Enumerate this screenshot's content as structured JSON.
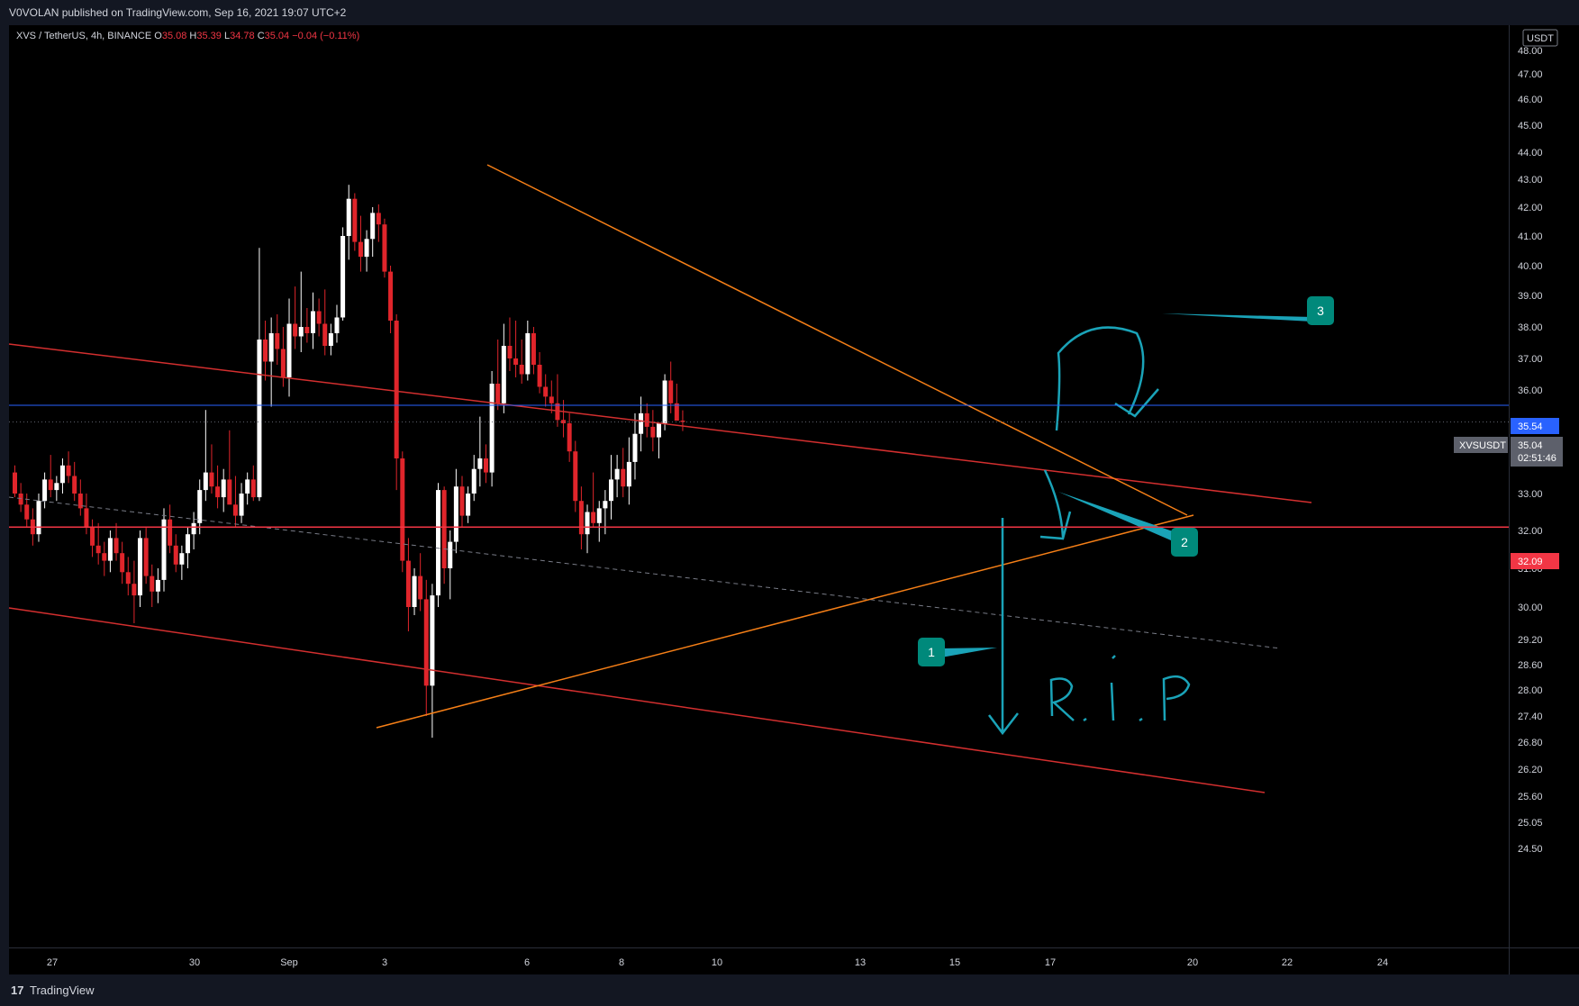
{
  "header": {
    "publish_text": "V0VOLAN published on TradingView.com, Sep 16, 2021 19:07 UTC+2"
  },
  "legend": {
    "pair": "XVS / TetherUS, 4h, BINANCE",
    "o_label": "O",
    "o_value": "35.08",
    "h_label": "H",
    "h_value": "35.39",
    "l_label": "L",
    "l_value": "34.78",
    "c_label": "C",
    "c_value": "35.04",
    "change": "−0.04 (−0.11%)"
  },
  "footer": {
    "brand": "TradingView",
    "logo": "17"
  },
  "price_axis": {
    "currency": "USDT",
    "symbol_label": "XVSUSDT",
    "last_price": "35.04",
    "countdown": "02:51:46",
    "blue_level_label": "35.54",
    "red_level_label": "32.09"
  },
  "colors": {
    "up": "#ffffff",
    "down": "#e0252b",
    "orange": "#f57f17",
    "red_line": "#d32f2f",
    "blue_line": "#2962ff",
    "annotation": "#1aa3b8",
    "badge": "#00897b"
  },
  "annotations": {
    "badge_1": "1",
    "badge_2": "2",
    "badge_3": "3",
    "rip_text": "R.I.P"
  },
  "chart_data": {
    "type": "candlestick",
    "title": "XVS / TetherUS, 4h, BINANCE",
    "y_ticks": [
      "48.00",
      "47.00",
      "46.00",
      "45.00",
      "44.00",
      "43.00",
      "42.00",
      "41.00",
      "40.00",
      "39.00",
      "38.00",
      "37.00",
      "36.00",
      "35.00",
      "34.00",
      "33.00",
      "32.00",
      "31.00",
      "30.00",
      "29.20",
      "28.60",
      "28.00",
      "27.40",
      "26.80",
      "26.20",
      "25.60",
      "25.05",
      "24.50"
    ],
    "x_ticks": [
      "27",
      "30",
      "Sep",
      "3",
      "6",
      "8",
      "10",
      "13",
      "15",
      "17",
      "20",
      "22",
      "24"
    ],
    "y_range": [
      24.1,
      48.2
    ],
    "y_scale": "log",
    "x_range": [
      "2021-08-26T20:00",
      "2021-09-25T20:00"
    ],
    "horizontal_levels": [
      {
        "price": 35.54,
        "color": "blue"
      },
      {
        "price": 32.09,
        "color": "red"
      },
      {
        "price": 35.04,
        "style": "dotted-last-price"
      }
    ],
    "candles": [
      [
        33.6,
        33.8,
        32.9,
        33.0
      ],
      [
        33.0,
        33.3,
        32.5,
        32.7
      ],
      [
        32.7,
        33.0,
        32.1,
        32.3
      ],
      [
        32.3,
        32.6,
        31.6,
        31.9
      ],
      [
        31.9,
        33.0,
        31.7,
        32.8
      ],
      [
        32.8,
        33.6,
        32.6,
        33.4
      ],
      [
        33.4,
        34.1,
        32.9,
        33.1
      ],
      [
        33.1,
        33.5,
        32.8,
        33.3
      ],
      [
        33.3,
        34.0,
        33.0,
        33.8
      ],
      [
        33.8,
        34.2,
        33.3,
        33.5
      ],
      [
        33.5,
        33.9,
        32.8,
        33.0
      ],
      [
        33.0,
        33.4,
        32.4,
        32.6
      ],
      [
        32.6,
        33.0,
        31.9,
        32.1
      ],
      [
        32.1,
        32.3,
        31.3,
        31.6
      ],
      [
        31.6,
        32.2,
        31.1,
        31.4
      ],
      [
        31.4,
        31.7,
        30.8,
        31.2
      ],
      [
        31.2,
        32.0,
        30.9,
        31.8
      ],
      [
        31.8,
        32.2,
        31.2,
        31.4
      ],
      [
        31.4,
        31.7,
        30.6,
        30.9
      ],
      [
        30.9,
        31.3,
        30.3,
        30.6
      ],
      [
        30.6,
        31.2,
        29.6,
        30.3
      ],
      [
        30.3,
        32.0,
        30.0,
        31.8
      ],
      [
        31.8,
        32.1,
        30.6,
        30.8
      ],
      [
        30.8,
        31.1,
        30.0,
        30.4
      ],
      [
        30.4,
        31.0,
        30.1,
        30.7
      ],
      [
        30.7,
        32.6,
        30.4,
        32.3
      ],
      [
        32.3,
        32.7,
        31.4,
        31.6
      ],
      [
        31.6,
        31.9,
        30.9,
        31.1
      ],
      [
        31.1,
        31.6,
        30.7,
        31.4
      ],
      [
        31.4,
        32.1,
        31.0,
        31.9
      ],
      [
        31.9,
        32.5,
        31.5,
        32.2
      ],
      [
        32.2,
        33.4,
        31.9,
        33.1
      ],
      [
        33.1,
        35.4,
        32.8,
        33.6
      ],
      [
        33.6,
        34.4,
        33.0,
        33.2
      ],
      [
        33.2,
        33.8,
        32.6,
        32.9
      ],
      [
        32.9,
        33.7,
        32.5,
        33.4
      ],
      [
        33.4,
        34.8,
        32.8,
        32.7
      ],
      [
        32.7,
        33.5,
        32.1,
        32.4
      ],
      [
        32.4,
        33.3,
        32.2,
        33.0
      ],
      [
        33.0,
        33.6,
        32.7,
        33.4
      ],
      [
        33.4,
        33.8,
        32.8,
        32.9
      ],
      [
        32.9,
        40.6,
        32.8,
        37.6
      ],
      [
        37.6,
        38.2,
        36.3,
        36.9
      ],
      [
        36.9,
        38.3,
        35.5,
        37.8
      ],
      [
        37.8,
        38.4,
        36.8,
        37.3
      ],
      [
        37.3,
        38.0,
        36.1,
        36.4
      ],
      [
        36.4,
        38.9,
        35.8,
        38.1
      ],
      [
        38.1,
        39.3,
        37.3,
        37.7
      ],
      [
        37.7,
        39.8,
        37.2,
        38.0
      ],
      [
        38.0,
        38.6,
        37.5,
        37.8
      ],
      [
        37.8,
        39.1,
        37.3,
        38.5
      ],
      [
        38.5,
        38.9,
        37.7,
        38.1
      ],
      [
        38.1,
        39.2,
        37.1,
        37.4
      ],
      [
        37.4,
        38.1,
        37.1,
        37.8
      ],
      [
        37.8,
        38.7,
        37.5,
        38.3
      ],
      [
        38.3,
        41.3,
        38.2,
        41.0
      ],
      [
        41.0,
        42.8,
        40.2,
        42.3
      ],
      [
        42.3,
        42.5,
        40.5,
        40.8
      ],
      [
        40.8,
        41.7,
        39.8,
        40.3
      ],
      [
        40.3,
        41.2,
        39.8,
        40.9
      ],
      [
        40.9,
        42.0,
        40.3,
        41.8
      ],
      [
        41.8,
        42.1,
        40.8,
        41.4
      ],
      [
        41.4,
        41.6,
        39.6,
        39.8
      ],
      [
        39.8,
        40.0,
        37.8,
        38.2
      ],
      [
        38.2,
        38.4,
        33.1,
        34.0
      ],
      [
        34.0,
        34.2,
        30.9,
        31.2
      ],
      [
        31.2,
        31.8,
        29.4,
        30.0
      ],
      [
        30.0,
        31.0,
        29.8,
        30.8
      ],
      [
        30.8,
        31.4,
        29.9,
        30.2
      ],
      [
        30.2,
        30.7,
        27.4,
        28.1
      ],
      [
        28.1,
        30.6,
        26.9,
        30.3
      ],
      [
        30.3,
        33.3,
        30.0,
        33.1
      ],
      [
        33.1,
        33.2,
        30.6,
        31.0
      ],
      [
        31.0,
        32.0,
        30.2,
        31.7
      ],
      [
        31.7,
        33.7,
        31.4,
        33.2
      ],
      [
        33.2,
        33.5,
        32.1,
        32.4
      ],
      [
        32.4,
        33.2,
        32.2,
        33.0
      ],
      [
        33.0,
        34.1,
        32.8,
        33.7
      ],
      [
        33.7,
        35.2,
        33.2,
        34.0
      ],
      [
        34.0,
        34.4,
        33.3,
        33.6
      ],
      [
        33.6,
        36.6,
        33.2,
        36.2
      ],
      [
        36.2,
        37.6,
        35.4,
        35.6
      ],
      [
        35.6,
        38.1,
        35.3,
        37.4
      ],
      [
        37.4,
        38.3,
        36.6,
        37.0
      ],
      [
        37.0,
        38.2,
        36.4,
        36.8
      ],
      [
        36.8,
        37.6,
        36.2,
        36.5
      ],
      [
        36.5,
        38.2,
        36.3,
        37.8
      ],
      [
        37.8,
        38.0,
        36.5,
        36.8
      ],
      [
        36.8,
        37.2,
        35.9,
        36.1
      ],
      [
        36.1,
        36.5,
        35.5,
        35.8
      ],
      [
        35.8,
        36.3,
        35.3,
        35.6
      ],
      [
        35.6,
        36.5,
        34.9,
        35.1
      ],
      [
        35.1,
        35.7,
        34.6,
        35.0
      ],
      [
        35.0,
        35.3,
        33.9,
        34.2
      ],
      [
        34.2,
        34.5,
        32.5,
        32.8
      ],
      [
        32.8,
        33.2,
        31.5,
        31.9
      ],
      [
        31.9,
        32.7,
        31.4,
        32.5
      ],
      [
        32.5,
        33.6,
        32.1,
        32.2
      ],
      [
        32.2,
        32.8,
        31.7,
        32.6
      ],
      [
        32.6,
        33.1,
        31.9,
        32.8
      ],
      [
        32.8,
        34.1,
        32.3,
        33.4
      ],
      [
        33.4,
        34.1,
        32.9,
        33.7
      ],
      [
        33.7,
        34.3,
        32.9,
        33.2
      ],
      [
        33.2,
        34.6,
        32.7,
        33.9
      ],
      [
        33.9,
        35.3,
        33.4,
        34.7
      ],
      [
        34.7,
        35.8,
        34.2,
        35.3
      ],
      [
        35.3,
        35.6,
        34.6,
        34.9
      ],
      [
        34.9,
        35.4,
        34.2,
        34.6
      ],
      [
        34.6,
        35.0,
        34.0,
        35.0
      ],
      [
        35.0,
        36.5,
        34.8,
        36.3
      ],
      [
        36.3,
        36.9,
        35.3,
        35.6
      ],
      [
        35.6,
        36.2,
        35.1,
        35.08
      ],
      [
        35.08,
        35.39,
        34.78,
        35.04
      ]
    ]
  }
}
